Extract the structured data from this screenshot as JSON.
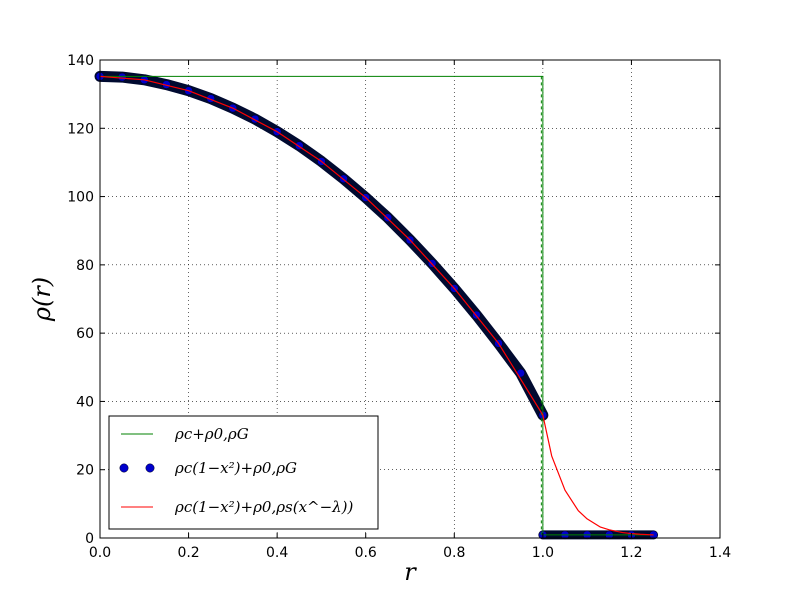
{
  "chart_data": {
    "type": "line",
    "xlabel": "r",
    "ylabel": "ρ(r)",
    "xlim": [
      0.0,
      1.4
    ],
    "ylim": [
      0,
      140
    ],
    "xticks": [
      0.0,
      0.2,
      0.4,
      0.6,
      0.8,
      1.0,
      1.2,
      1.4
    ],
    "yticks": [
      0,
      20,
      40,
      60,
      80,
      100,
      120,
      140
    ],
    "xtick_labels": [
      "0.0",
      "0.2",
      "0.4",
      "0.6",
      "0.8",
      "1.0",
      "1.2",
      "1.4"
    ],
    "ytick_labels": [
      "0",
      "20",
      "40",
      "60",
      "80",
      "100",
      "120",
      "140"
    ],
    "grid": true,
    "legend_position": "lower-left",
    "series": [
      {
        "name": "ρc+ρ0,ρG",
        "style": "line",
        "color": "#008000",
        "x": [
          0.0,
          1.0,
          1.0,
          1.25
        ],
        "y": [
          135.2,
          135.2,
          0.9,
          0.9
        ]
      },
      {
        "name": "ρc(1−x²)+ρ0,ρG",
        "style": "markers",
        "color": "#0000cc",
        "x": [
          0.0,
          0.05,
          0.1,
          0.15,
          0.2,
          0.25,
          0.3,
          0.35,
          0.4,
          0.45,
          0.5,
          0.55,
          0.6,
          0.65,
          0.7,
          0.75,
          0.8,
          0.85,
          0.9,
          0.95,
          1.0,
          1.0,
          1.05,
          1.1,
          1.15,
          1.2,
          1.25
        ],
        "y": [
          135.2,
          135.0,
          134.2,
          132.8,
          131.0,
          128.7,
          125.9,
          122.7,
          119.0,
          114.9,
          110.3,
          105.2,
          99.7,
          93.8,
          87.3,
          80.4,
          73.1,
          65.3,
          57.0,
          48.3,
          36.0,
          0.9,
          0.9,
          0.9,
          0.9,
          0.9,
          0.9
        ]
      },
      {
        "name": "ρc(1−x²)+ρ0,ρs(x^−λ))",
        "style": "line",
        "color": "#ff0000",
        "x": [
          0.0,
          0.1,
          0.2,
          0.3,
          0.4,
          0.5,
          0.6,
          0.7,
          0.8,
          0.9,
          1.0,
          1.02,
          1.05,
          1.08,
          1.1,
          1.13,
          1.15,
          1.18,
          1.2,
          1.22,
          1.25
        ],
        "y": [
          135.2,
          134.2,
          131.0,
          125.9,
          119.0,
          110.3,
          99.7,
          87.3,
          73.1,
          57.0,
          36.0,
          24.0,
          14.0,
          8.0,
          5.6,
          3.2,
          2.4,
          1.6,
          1.3,
          1.1,
          0.9
        ]
      }
    ]
  }
}
